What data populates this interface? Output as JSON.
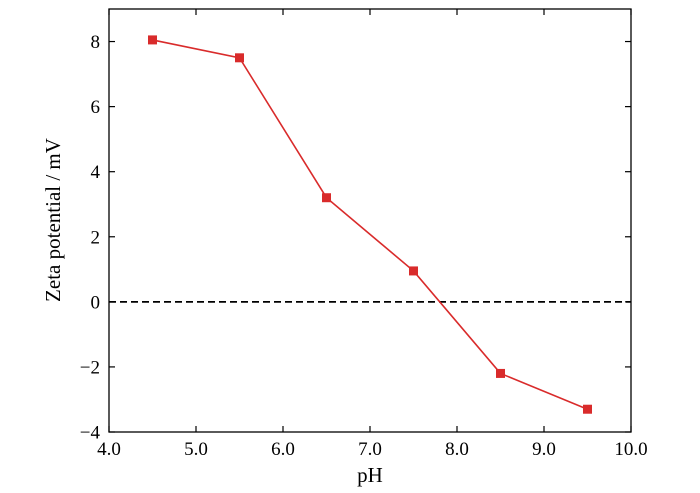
{
  "chart_data": {
    "type": "line",
    "title": "",
    "xlabel": "pH",
    "ylabel": "Zeta potential / mV",
    "xlim": [
      4.0,
      10.0
    ],
    "ylim": [
      -4,
      9
    ],
    "x_ticks": [
      4.0,
      5.0,
      6.0,
      7.0,
      8.0,
      9.0,
      10.0
    ],
    "x_tick_labels": [
      "4.0",
      "5.0",
      "6.0",
      "7.0",
      "8.0",
      "9.0",
      "10.0"
    ],
    "y_ticks": [
      -4,
      -2,
      0,
      2,
      4,
      6,
      8
    ],
    "y_tick_labels": [
      "−4",
      "−2",
      "0",
      "2",
      "4",
      "6",
      "8"
    ],
    "reference_line": {
      "y": 0,
      "style": "dashed",
      "color": "#000000"
    },
    "grid": false,
    "series": [
      {
        "color": "#d92b2b",
        "marker": "square",
        "x": [
          4.5,
          5.5,
          6.5,
          7.5,
          8.5,
          9.5
        ],
        "y": [
          8.05,
          7.5,
          3.2,
          0.95,
          -2.2,
          -3.3
        ]
      }
    ]
  }
}
